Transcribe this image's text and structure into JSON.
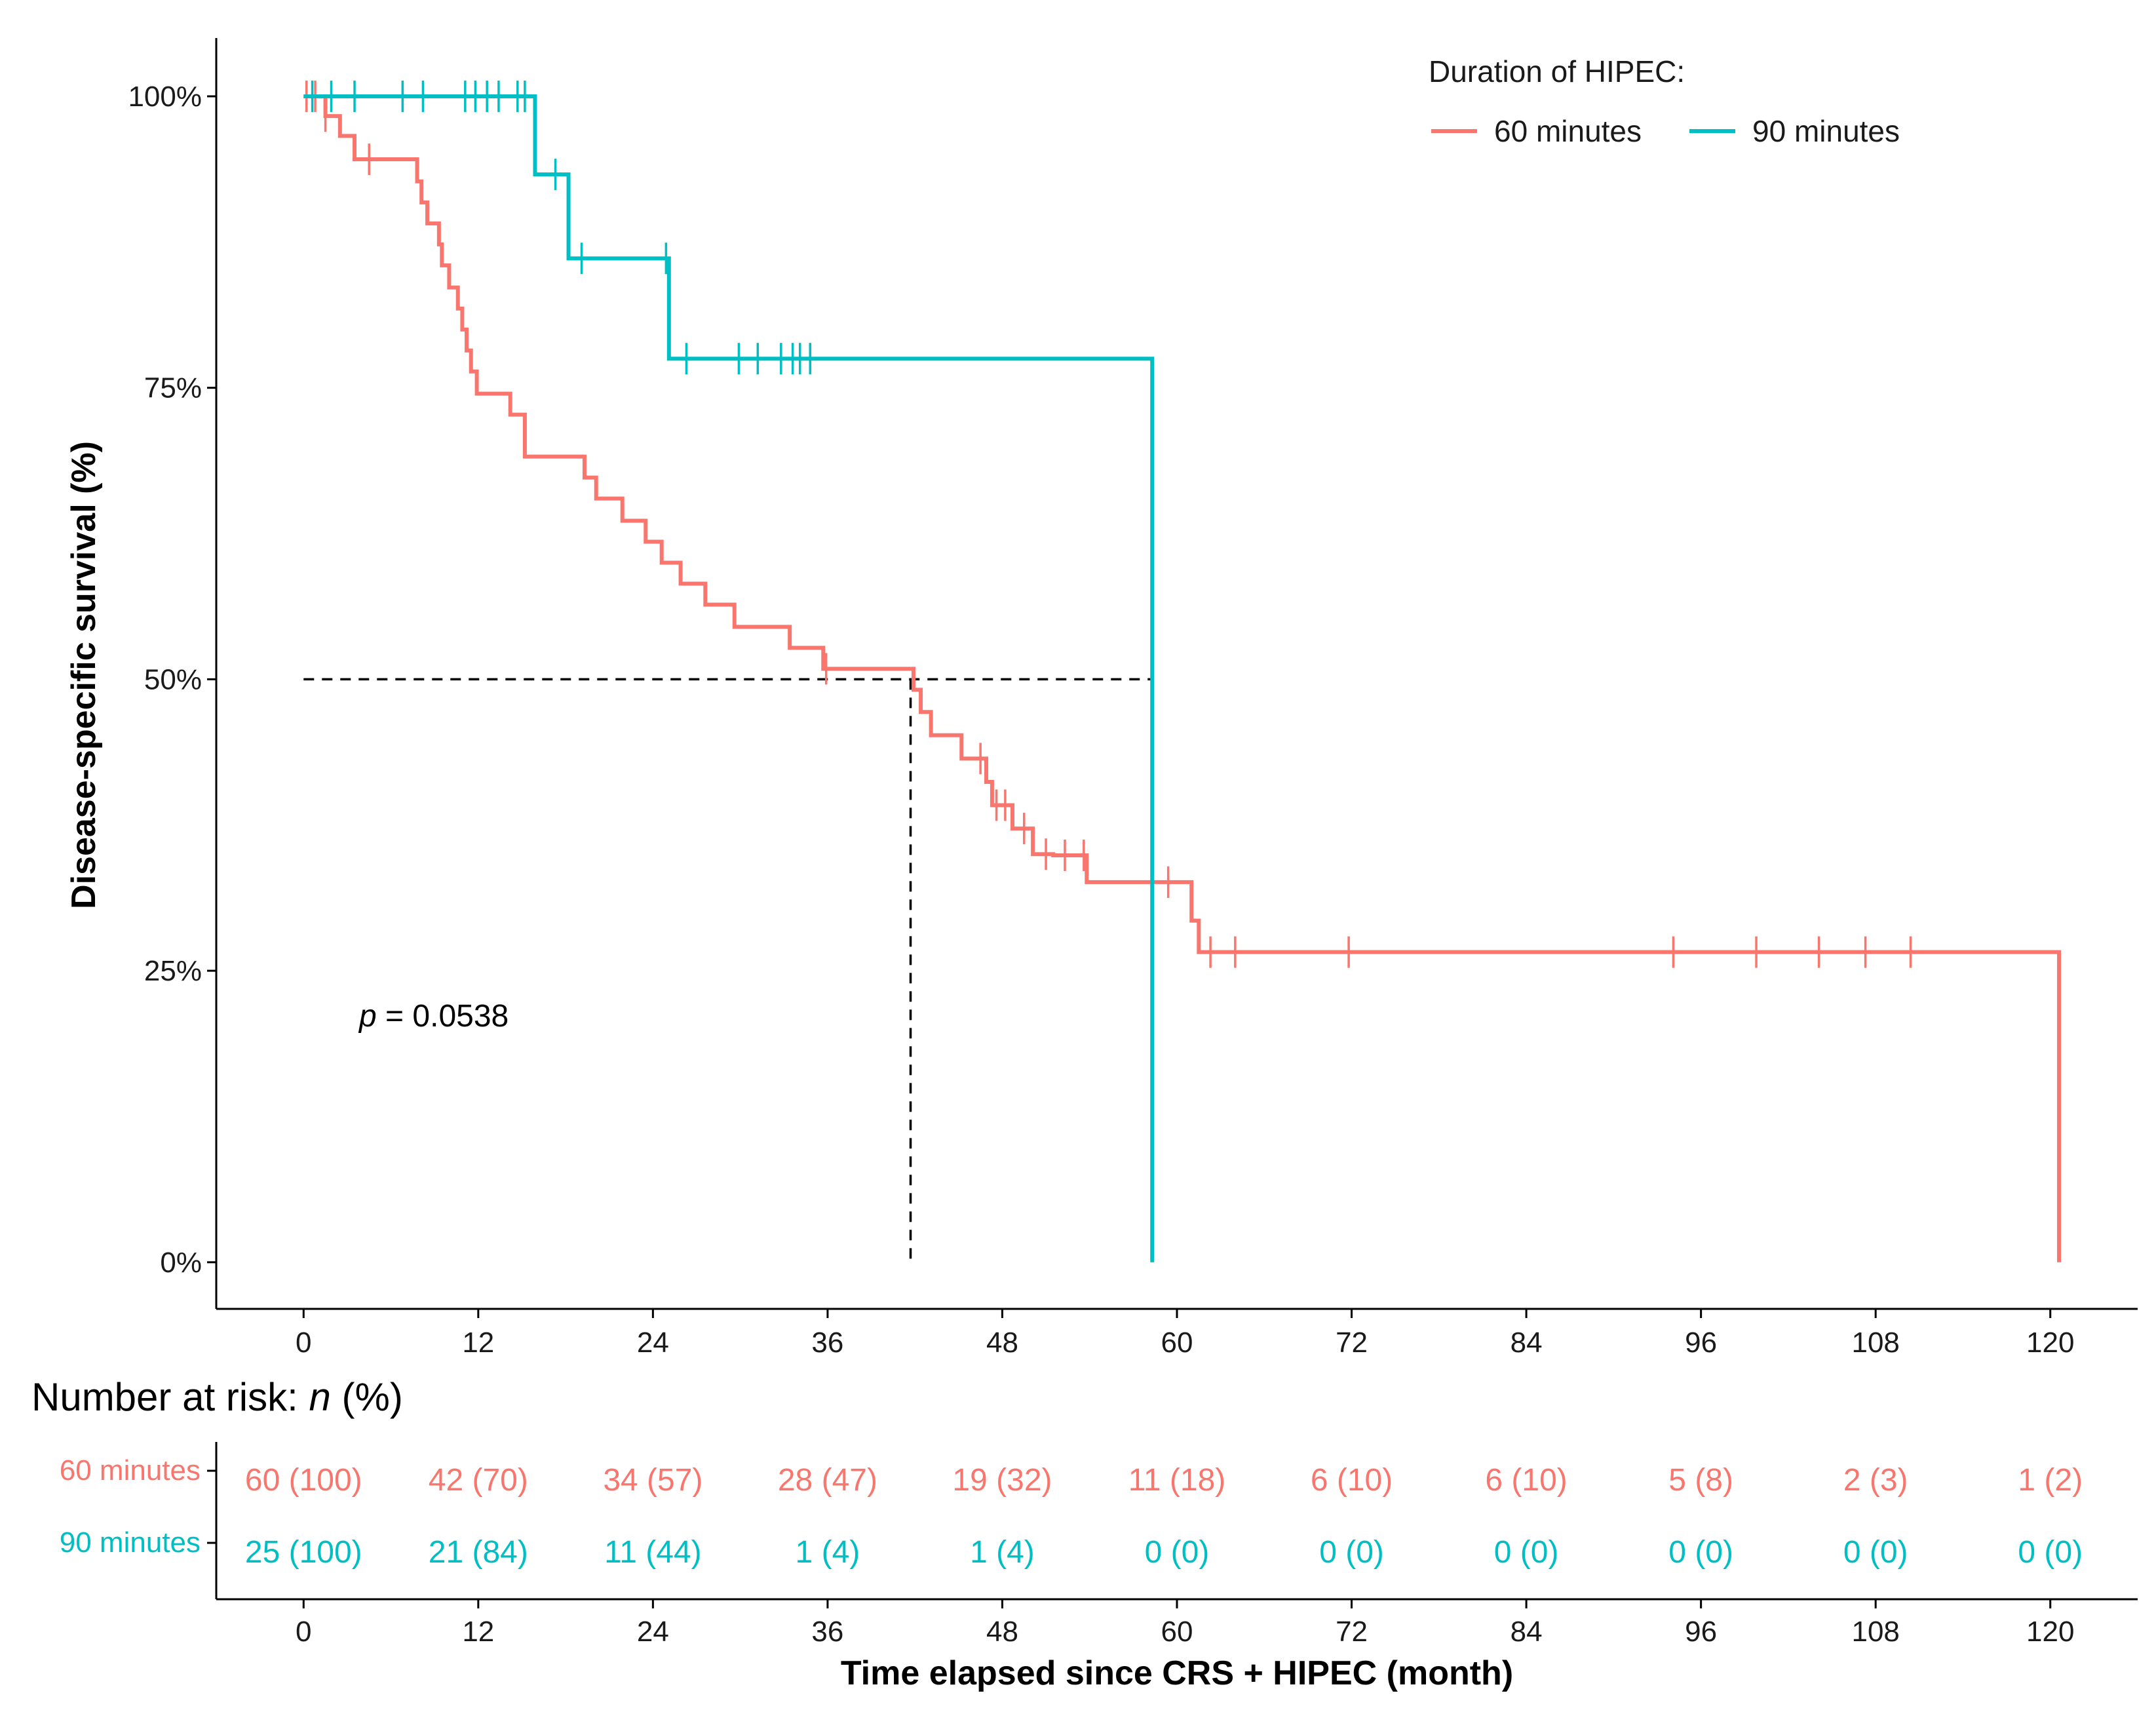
{
  "chart_data": {
    "type": "line",
    "subtype": "kaplan-meier",
    "ylabel": "Disease-specific survival (%)",
    "xlabel": "Time elapsed since CRS + HIPEC (month)",
    "x_ticks": [
      "0",
      "12",
      "24",
      "36",
      "48",
      "60",
      "72",
      "84",
      "96",
      "108",
      "120"
    ],
    "x_tick_values": [
      0,
      12,
      24,
      36,
      48,
      60,
      72,
      84,
      96,
      108,
      120
    ],
    "y_ticks": [
      "0%",
      "25%",
      "50%",
      "75%",
      "100%"
    ],
    "y_tick_values": [
      0,
      25,
      50,
      75,
      100
    ],
    "xlim": [
      -6,
      126
    ],
    "ylim": [
      -4,
      105
    ],
    "legend": {
      "title": "Duration of HIPEC:",
      "position": "top-right"
    },
    "pvalue": {
      "prefix": "p",
      "text": " = 0.0538"
    },
    "median_line": {
      "y": 50,
      "x": [
        41.7,
        58.3
      ]
    },
    "series": [
      {
        "name": "60 minutes",
        "color": "#F8766D",
        "steps": [
          [
            0,
            100
          ],
          [
            1.5,
            98.3
          ],
          [
            2.5,
            96.6
          ],
          [
            3.5,
            94.6
          ],
          [
            7.8,
            92.7
          ],
          [
            8.1,
            90.9
          ],
          [
            8.5,
            89.1
          ],
          [
            9.3,
            87.3
          ],
          [
            9.5,
            85.5
          ],
          [
            10.0,
            83.6
          ],
          [
            10.6,
            81.8
          ],
          [
            10.9,
            80.0
          ],
          [
            11.2,
            78.2
          ],
          [
            11.5,
            76.4
          ],
          [
            11.9,
            74.5
          ],
          [
            14.2,
            72.7
          ],
          [
            15.2,
            69.1
          ],
          [
            19.3,
            67.3
          ],
          [
            20.1,
            65.5
          ],
          [
            21.9,
            63.6
          ],
          [
            23.5,
            61.8
          ],
          [
            24.6,
            60.0
          ],
          [
            25.9,
            58.2
          ],
          [
            27.6,
            56.4
          ],
          [
            29.6,
            54.5
          ],
          [
            33.4,
            52.7
          ],
          [
            35.7,
            50.9
          ],
          [
            41.9,
            49.1
          ],
          [
            42.4,
            47.2
          ],
          [
            43.1,
            45.2
          ],
          [
            45.2,
            43.2
          ],
          [
            46.9,
            41.2
          ],
          [
            47.3,
            39.2
          ],
          [
            48.7,
            37.2
          ],
          [
            50.1,
            35.0
          ],
          [
            51.5,
            34.9
          ],
          [
            53.8,
            32.6
          ],
          [
            61.0,
            29.3
          ],
          [
            61.5,
            26.6
          ],
          [
            120.6,
            0
          ]
        ],
        "end_x": 120.6,
        "censors": [
          0.2,
          0.8,
          1.5,
          4.5,
          35.9,
          46.5,
          47.6,
          48.2,
          49.5,
          51.0,
          52.3,
          53.6,
          59.4,
          62.3,
          64.0,
          71.8,
          94.1,
          99.8,
          104.1,
          107.3,
          110.4
        ]
      },
      {
        "name": "90 minutes",
        "color": "#00BFC4",
        "steps": [
          [
            0,
            100
          ],
          [
            15.9,
            93.3
          ],
          [
            18.2,
            86.1
          ],
          [
            25.1,
            77.5
          ],
          [
            58.3,
            0
          ]
        ],
        "end_x": 58.3,
        "censors": [
          0.6,
          1.9,
          3.5,
          6.8,
          8.2,
          11.1,
          11.8,
          12.6,
          13.4,
          14.7,
          15.2,
          17.3,
          19.1,
          24.9,
          26.3,
          29.9,
          31.2,
          32.8,
          33.6,
          34.1,
          34.8
        ]
      }
    ]
  },
  "risk_table": {
    "title_prefix": "Number at risk: ",
    "title_var": "n",
    "title_suffix": " (%)",
    "rows": [
      {
        "label": "60 minutes",
        "color": "#F8766D",
        "values": [
          "60 (100)",
          "42 (70)",
          "34 (57)",
          "28 (47)",
          "19 (32)",
          "11 (18)",
          "6 (10)",
          "6 (10)",
          "5 (8)",
          "2 (3)",
          "1 (2)"
        ]
      },
      {
        "label": "90 minutes",
        "color": "#00BFC4",
        "values": [
          "25 (100)",
          "21 (84)",
          "11 (44)",
          "1 (4)",
          "1 (4)",
          "0 (0)",
          "0 (0)",
          "0 (0)",
          "0 (0)",
          "0 (0)",
          "0 (0)"
        ]
      }
    ]
  }
}
